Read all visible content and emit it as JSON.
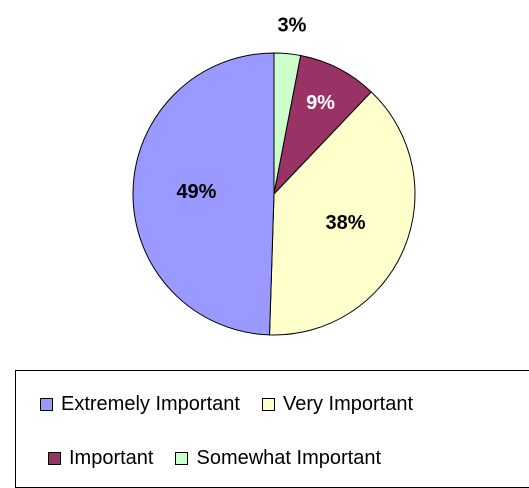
{
  "chart_data": {
    "type": "pie",
    "title": "",
    "categories": [
      "Extremely Important",
      "Very Important",
      "Important",
      "Somewhat Important"
    ],
    "values": [
      49,
      38,
      9,
      3
    ],
    "labels": [
      "49%",
      "38%",
      "9%",
      "3%"
    ],
    "colors": [
      "#9999ff",
      "#ffffcc",
      "#993366",
      "#ccffcc"
    ],
    "label_colors": [
      "#000000",
      "#000000",
      "#ffffff",
      "#000000"
    ],
    "legend_position": "bottom"
  }
}
